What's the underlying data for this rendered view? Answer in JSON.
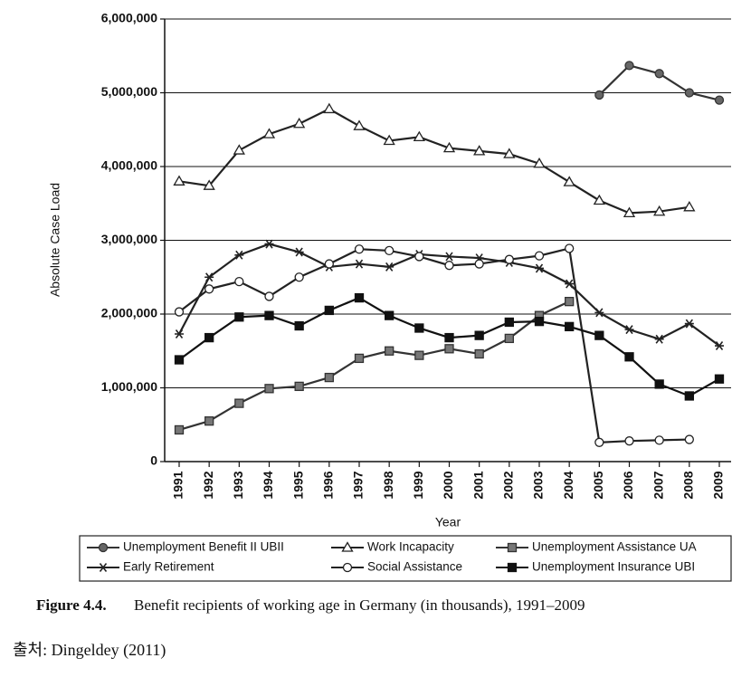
{
  "chart_data": {
    "type": "line",
    "y_label": "Absolute Case Load",
    "x_label": "Year",
    "categories": [
      "1991",
      "1992",
      "1993",
      "1994",
      "1995",
      "1996",
      "1997",
      "1998",
      "1999",
      "2000",
      "2001",
      "2002",
      "2003",
      "2004",
      "2005",
      "2006",
      "2007",
      "2008",
      "2009"
    ],
    "ylim": [
      0,
      6000000
    ],
    "yticks": [
      0,
      {
        "value": 1000000,
        "label": "1,000,000"
      },
      {
        "value": 2000000,
        "label": "2,000,000"
      },
      {
        "value": 3000000,
        "label": "3,000,000"
      },
      {
        "value": 4000000,
        "label": "4,000,000"
      },
      {
        "value": 5000000,
        "label": "5,000,000"
      },
      {
        "value": 6000000,
        "label": "6,000,000"
      }
    ],
    "grid": true,
    "series": [
      {
        "name": "Unemployment Benefit II UBII",
        "color": "#333333",
        "marker": "circle-filled",
        "values": [
          null,
          null,
          null,
          null,
          null,
          null,
          null,
          null,
          null,
          null,
          null,
          null,
          null,
          null,
          4970000,
          5370000,
          5260000,
          5000000,
          4900000
        ]
      },
      {
        "name": "Work Incapacity",
        "color": "#222222",
        "marker": "triangle-open",
        "values": [
          3800000,
          3740000,
          4220000,
          4440000,
          4580000,
          4780000,
          4550000,
          4350000,
          4400000,
          4250000,
          4210000,
          4170000,
          4040000,
          3790000,
          3540000,
          3370000,
          3390000,
          3450000,
          null
        ]
      },
      {
        "name": "Unemployment Assistance UA",
        "color": "#333333",
        "marker": "square-gray",
        "values": [
          430000,
          550000,
          790000,
          990000,
          1020000,
          1140000,
          1400000,
          1500000,
          1440000,
          1530000,
          1460000,
          1670000,
          1980000,
          2170000,
          null,
          null,
          null,
          null,
          null
        ]
      },
      {
        "name": "Early Retirement",
        "color": "#222222",
        "marker": "star",
        "values": [
          1730000,
          2500000,
          2800000,
          2950000,
          2840000,
          2640000,
          2680000,
          2640000,
          2810000,
          2780000,
          2760000,
          2700000,
          2620000,
          2410000,
          2020000,
          1790000,
          1660000,
          1870000,
          1570000
        ]
      },
      {
        "name": "Social Assistance",
        "color": "#222222",
        "marker": "circle-open",
        "values": [
          2030000,
          2340000,
          2440000,
          2240000,
          2500000,
          2680000,
          2880000,
          2860000,
          2780000,
          2660000,
          2680000,
          2740000,
          2790000,
          2890000,
          260000,
          280000,
          290000,
          300000,
          null
        ]
      },
      {
        "name": "Unemployment Insurance UBI",
        "color": "#111111",
        "marker": "square-filled",
        "values": [
          1380000,
          1680000,
          1960000,
          1980000,
          1840000,
          2050000,
          2220000,
          1980000,
          1810000,
          1680000,
          1710000,
          1890000,
          1900000,
          1830000,
          1710000,
          1420000,
          1050000,
          890000,
          1120000
        ]
      }
    ]
  },
  "caption": {
    "label": "Figure 4.4.",
    "text": "Benefit recipients of working age in Germany (in thousands), 1991–2009"
  },
  "source": "출처: Dingeldey (2011)"
}
